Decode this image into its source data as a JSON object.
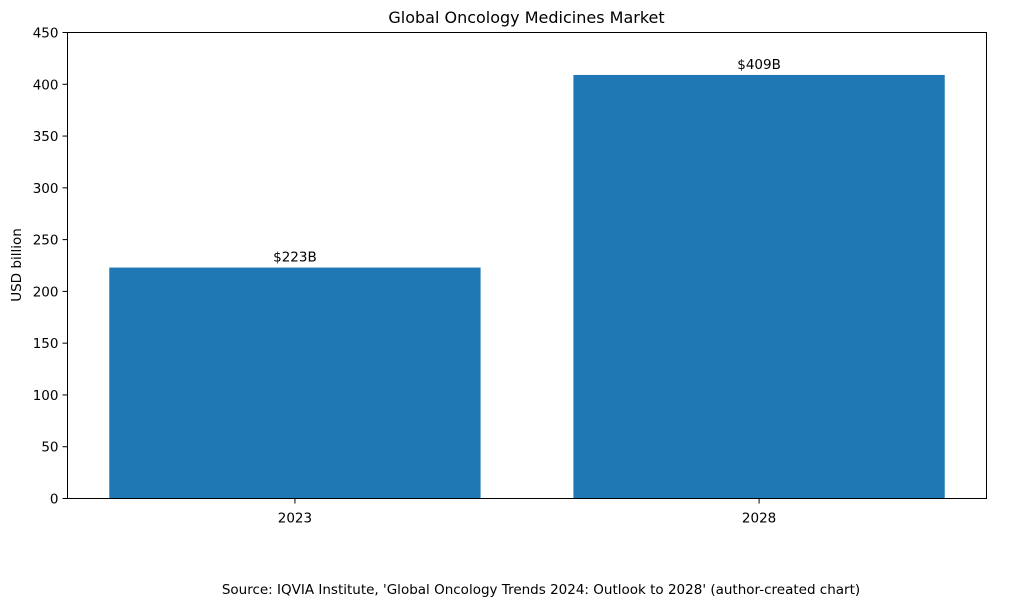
{
  "chart_data": {
    "type": "bar",
    "title": "Global Oncology Medicines Market",
    "xlabel": "",
    "ylabel": "USD billion",
    "categories": [
      "2023",
      "2028"
    ],
    "values": [
      223,
      409
    ],
    "data_labels": [
      "$223B",
      "$409B"
    ],
    "ylim": [
      0,
      450
    ],
    "yticks": [
      0,
      50,
      100,
      150,
      200,
      250,
      300,
      350,
      400,
      450
    ],
    "grid": false,
    "bar_color": "#1f77b4"
  },
  "footer": {
    "source": "Source: IQVIA Institute, 'Global Oncology Trends 2024: Outlook to 2028' (author-created chart)"
  }
}
